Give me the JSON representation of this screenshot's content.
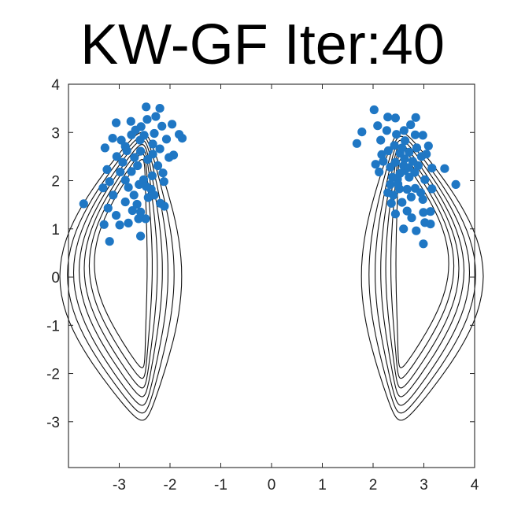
{
  "chart_data": {
    "type": "scatter",
    "title": "KW-GF Iter:40",
    "xlabel": "",
    "ylabel": "",
    "xlim": [
      -4.0,
      4.0
    ],
    "ylim": [
      -3.95,
      4.0
    ],
    "xticks": [
      -3,
      -2,
      -1,
      0,
      1,
      2,
      3,
      4
    ],
    "yticks": [
      4,
      3,
      2,
      1,
      0,
      -1,
      -2,
      -3
    ],
    "xtick_labels": [
      "-3",
      "-2",
      "-1",
      "0",
      "1",
      "2",
      "3",
      "4"
    ],
    "ytick_labels": [
      "4",
      "3",
      "2",
      "1",
      "0",
      "-1",
      "-2",
      "-3"
    ],
    "grid": false,
    "legend": "none",
    "box": true,
    "colors": {
      "points": "#1f77c4",
      "contours": "#111111",
      "axes": "#262626"
    },
    "contours": {
      "description_count": 7,
      "centers": [
        {
          "x": -2.65,
          "y": 0.05
        },
        {
          "x": 2.65,
          "y": 0.05
        }
      ],
      "levels": [
        {
          "bottom": -2.97,
          "inner_top": 3.0,
          "half_width": 1.2
        },
        {
          "bottom": -2.82,
          "inner_top": 2.92,
          "half_width": 1.05
        },
        {
          "bottom": -2.66,
          "inner_top": 2.84,
          "half_width": 0.93
        },
        {
          "bottom": -2.48,
          "inner_top": 2.75,
          "half_width": 0.82
        },
        {
          "bottom": -2.3,
          "inner_top": 2.66,
          "half_width": 0.72
        },
        {
          "bottom": -2.1,
          "inner_top": 2.56,
          "half_width": 0.62
        },
        {
          "bottom": -1.88,
          "inner_top": 2.44,
          "half_width": 0.52
        }
      ]
    },
    "points": [
      {
        "x": -3.7,
        "y": 1.52
      },
      {
        "x": -3.28,
        "y": 2.68
      },
      {
        "x": -3.06,
        "y": 3.2
      },
      {
        "x": -3.24,
        "y": 2.23
      },
      {
        "x": -3.19,
        "y": 1.98
      },
      {
        "x": -3.32,
        "y": 1.85
      },
      {
        "x": -3.12,
        "y": 1.7
      },
      {
        "x": -3.22,
        "y": 1.43
      },
      {
        "x": -3.3,
        "y": 1.09
      },
      {
        "x": -3.19,
        "y": 0.74
      },
      {
        "x": -2.99,
        "y": 1.08
      },
      {
        "x": -3.06,
        "y": 1.28
      },
      {
        "x": -2.93,
        "y": 2.38
      },
      {
        "x": -2.85,
        "y": 2.62
      },
      {
        "x": -2.76,
        "y": 2.95
      },
      {
        "x": -2.68,
        "y": 3.05
      },
      {
        "x": -2.57,
        "y": 3.12
      },
      {
        "x": -2.45,
        "y": 3.27
      },
      {
        "x": -2.47,
        "y": 3.53
      },
      {
        "x": -2.2,
        "y": 3.5
      },
      {
        "x": -2.28,
        "y": 3.33
      },
      {
        "x": -2.16,
        "y": 3.13
      },
      {
        "x": -1.96,
        "y": 3.17
      },
      {
        "x": -1.82,
        "y": 2.96
      },
      {
        "x": -1.76,
        "y": 2.88
      },
      {
        "x": -1.93,
        "y": 2.53
      },
      {
        "x": -2.02,
        "y": 2.48
      },
      {
        "x": -2.14,
        "y": 2.16
      },
      {
        "x": -2.12,
        "y": 1.98
      },
      {
        "x": -2.19,
        "y": 1.53
      },
      {
        "x": -2.11,
        "y": 1.47
      },
      {
        "x": -2.37,
        "y": 1.82
      },
      {
        "x": -2.58,
        "y": 1.35
      },
      {
        "x": -2.65,
        "y": 1.51
      },
      {
        "x": -2.48,
        "y": 1.21
      },
      {
        "x": -2.62,
        "y": 1.21
      },
      {
        "x": -2.74,
        "y": 1.38
      },
      {
        "x": -2.82,
        "y": 1.12
      },
      {
        "x": -2.58,
        "y": 0.85
      },
      {
        "x": -2.88,
        "y": 1.56
      },
      {
        "x": -2.71,
        "y": 1.7
      },
      {
        "x": -2.82,
        "y": 1.86
      },
      {
        "x": -2.61,
        "y": 1.92
      },
      {
        "x": -2.52,
        "y": 2.02
      },
      {
        "x": -2.35,
        "y": 2.1
      },
      {
        "x": -2.24,
        "y": 2.31
      },
      {
        "x": -2.34,
        "y": 2.55
      },
      {
        "x": -2.44,
        "y": 2.44
      },
      {
        "x": -2.58,
        "y": 2.61
      },
      {
        "x": -2.7,
        "y": 2.48
      },
      {
        "x": -2.88,
        "y": 2.71
      },
      {
        "x": -2.96,
        "y": 2.84
      },
      {
        "x": -2.59,
        "y": 2.84
      },
      {
        "x": -2.51,
        "y": 2.94
      },
      {
        "x": -2.34,
        "y": 2.76
      },
      {
        "x": -2.2,
        "y": 2.66
      },
      {
        "x": -2.31,
        "y": 2.98
      },
      {
        "x": -2.07,
        "y": 2.86
      },
      {
        "x": -3.05,
        "y": 2.5
      },
      {
        "x": -2.98,
        "y": 2.18
      },
      {
        "x": -2.88,
        "y": 2.01
      },
      {
        "x": -2.76,
        "y": 2.19
      },
      {
        "x": -2.64,
        "y": 2.31
      },
      {
        "x": -2.47,
        "y": 1.88
      },
      {
        "x": -2.43,
        "y": 1.65
      },
      {
        "x": -2.31,
        "y": 1.7
      },
      {
        "x": -2.77,
        "y": 3.23
      },
      {
        "x": -3.13,
        "y": 2.88
      },
      {
        "x": 1.68,
        "y": 2.77
      },
      {
        "x": 1.78,
        "y": 3.01
      },
      {
        "x": 2.02,
        "y": 3.47
      },
      {
        "x": 2.09,
        "y": 3.14
      },
      {
        "x": 2.29,
        "y": 3.32
      },
      {
        "x": 2.44,
        "y": 3.3
      },
      {
        "x": 2.27,
        "y": 3.04
      },
      {
        "x": 2.15,
        "y": 2.84
      },
      {
        "x": 2.46,
        "y": 2.96
      },
      {
        "x": 2.61,
        "y": 3.04
      },
      {
        "x": 2.74,
        "y": 3.16
      },
      {
        "x": 2.84,
        "y": 3.31
      },
      {
        "x": 2.83,
        "y": 2.95
      },
      {
        "x": 2.98,
        "y": 2.94
      },
      {
        "x": 3.09,
        "y": 2.72
      },
      {
        "x": 3.05,
        "y": 2.55
      },
      {
        "x": 3.16,
        "y": 2.26
      },
      {
        "x": 3.41,
        "y": 2.25
      },
      {
        "x": 3.63,
        "y": 1.92
      },
      {
        "x": 3.16,
        "y": 1.83
      },
      {
        "x": 3.02,
        "y": 2.02
      },
      {
        "x": 2.98,
        "y": 1.61
      },
      {
        "x": 3.13,
        "y": 1.36
      },
      {
        "x": 2.99,
        "y": 1.34
      },
      {
        "x": 3.13,
        "y": 1.1
      },
      {
        "x": 3.02,
        "y": 1.13
      },
      {
        "x": 2.85,
        "y": 0.96
      },
      {
        "x": 2.99,
        "y": 0.69
      },
      {
        "x": 2.6,
        "y": 1.0
      },
      {
        "x": 2.67,
        "y": 1.37
      },
      {
        "x": 2.75,
        "y": 1.66
      },
      {
        "x": 2.57,
        "y": 1.55
      },
      {
        "x": 2.44,
        "y": 1.31
      },
      {
        "x": 2.36,
        "y": 1.53
      },
      {
        "x": 2.29,
        "y": 1.75
      },
      {
        "x": 2.34,
        "y": 1.92
      },
      {
        "x": 2.48,
        "y": 2.03
      },
      {
        "x": 2.53,
        "y": 2.15
      },
      {
        "x": 2.62,
        "y": 2.21
      },
      {
        "x": 2.71,
        "y": 2.07
      },
      {
        "x": 2.82,
        "y": 2.17
      },
      {
        "x": 2.89,
        "y": 2.31
      },
      {
        "x": 2.78,
        "y": 2.4
      },
      {
        "x": 2.62,
        "y": 2.45
      },
      {
        "x": 2.53,
        "y": 2.57
      },
      {
        "x": 2.44,
        "y": 2.38
      },
      {
        "x": 2.34,
        "y": 2.28
      },
      {
        "x": 2.2,
        "y": 2.4
      },
      {
        "x": 2.05,
        "y": 2.34
      },
      {
        "x": 2.17,
        "y": 2.54
      },
      {
        "x": 2.3,
        "y": 2.62
      },
      {
        "x": 2.42,
        "y": 2.73
      },
      {
        "x": 2.57,
        "y": 2.68
      },
      {
        "x": 2.71,
        "y": 2.59
      },
      {
        "x": 2.86,
        "y": 2.68
      },
      {
        "x": 2.95,
        "y": 2.5
      },
      {
        "x": 2.63,
        "y": 2.83
      },
      {
        "x": 2.52,
        "y": 1.83
      },
      {
        "x": 2.67,
        "y": 1.82
      },
      {
        "x": 2.83,
        "y": 1.84
      },
      {
        "x": 2.76,
        "y": 1.23
      },
      {
        "x": 2.49,
        "y": 1.93
      },
      {
        "x": 2.38,
        "y": 2.07
      },
      {
        "x": 2.12,
        "y": 2.18
      },
      {
        "x": 2.94,
        "y": 1.75
      },
      {
        "x": 2.6,
        "y": 2.31
      },
      {
        "x": 2.7,
        "y": 2.27
      },
      {
        "x": 2.4,
        "y": 1.7
      }
    ]
  }
}
